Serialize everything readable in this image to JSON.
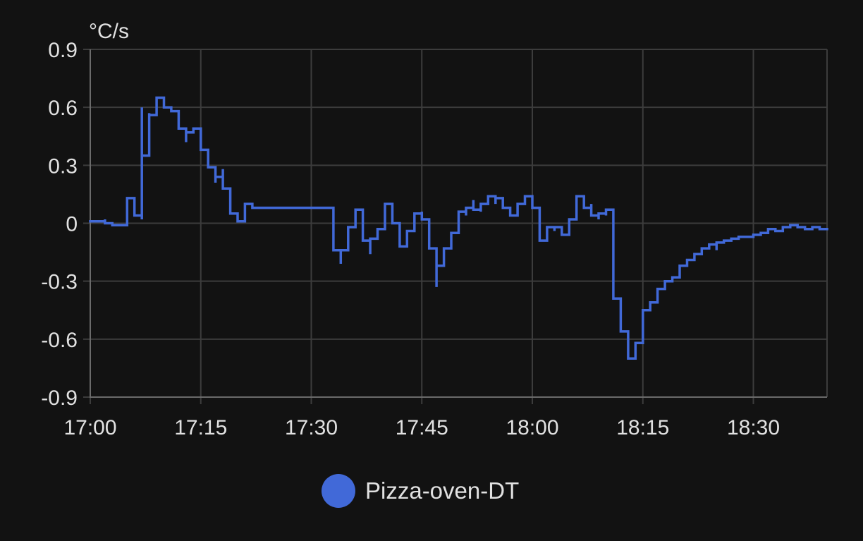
{
  "chart_data": {
    "type": "line",
    "ylabel": "°C/s",
    "ylim": [
      -0.9,
      0.9
    ],
    "y_ticks": [
      "0.9",
      "0.6",
      "0.3",
      "0",
      "-0.3",
      "-0.6",
      "-0.9"
    ],
    "y_tick_values": [
      0.9,
      0.6,
      0.3,
      0,
      -0.3,
      -0.6,
      -0.9
    ],
    "xlim": [
      "17:00",
      "18:40"
    ],
    "x_ticks": [
      "17:00",
      "17:15",
      "17:30",
      "17:45",
      "18:00",
      "18:15",
      "18:30"
    ],
    "grid": true,
    "step": true,
    "legend_position": "bottom",
    "colors": {
      "series": "#4169d8",
      "grid": "#3c3c3c",
      "axis": "#6a6a6a",
      "text": "#e1e1e1",
      "background": "#121212"
    },
    "series": [
      {
        "name": "Pizza-oven-DT",
        "points": [
          [
            "17:00",
            0.01
          ],
          [
            "17:02",
            0.01
          ],
          [
            "17:02",
            0.02
          ],
          [
            "17:02",
            0.0
          ],
          [
            "17:03",
            -0.01
          ],
          [
            "17:05",
            -0.01
          ],
          [
            "17:05",
            0.03
          ],
          [
            "17:05",
            0.13
          ],
          [
            "17:06",
            0.08
          ],
          [
            "17:06",
            0.04
          ],
          [
            "17:07",
            0.02
          ],
          [
            "17:07",
            0.02
          ],
          [
            "17:07",
            0.6
          ],
          [
            "17:07",
            0.35
          ],
          [
            "17:08",
            0.57
          ],
          [
            "17:08",
            0.37
          ],
          [
            "17:08",
            0.5
          ],
          [
            "17:08",
            0.56
          ],
          [
            "17:09",
            0.6
          ],
          [
            "17:09",
            0.65
          ],
          [
            "17:10",
            0.6
          ],
          [
            "17:11",
            0.58
          ],
          [
            "17:12",
            0.54
          ],
          [
            "17:12",
            0.49
          ],
          [
            "17:13",
            0.42
          ],
          [
            "17:13",
            0.47
          ],
          [
            "17:14",
            0.49
          ],
          [
            "17:15",
            0.45
          ],
          [
            "17:15",
            0.38
          ],
          [
            "17:16",
            0.34
          ],
          [
            "17:16",
            0.29
          ],
          [
            "17:17",
            0.21
          ],
          [
            "17:17",
            0.24
          ],
          [
            "17:18",
            0.28
          ],
          [
            "17:18",
            0.18
          ],
          [
            "17:19",
            0.09
          ],
          [
            "17:19",
            0.05
          ],
          [
            "17:20",
            0.03
          ],
          [
            "17:20",
            0.01
          ],
          [
            "17:21",
            0.04
          ],
          [
            "17:21",
            0.1
          ],
          [
            "17:22",
            0.08
          ],
          [
            "17:27",
            0.08
          ],
          [
            "17:33",
            0.08
          ],
          [
            "17:33",
            -0.14
          ],
          [
            "17:34",
            -0.21
          ],
          [
            "17:34",
            -0.14
          ],
          [
            "17:35",
            -0.13
          ],
          [
            "17:35",
            -0.02
          ],
          [
            "17:36",
            0.04
          ],
          [
            "17:36",
            0.07
          ],
          [
            "17:37",
            0.05
          ],
          [
            "17:37",
            -0.09
          ],
          [
            "17:38",
            -0.16
          ],
          [
            "17:38",
            -0.08
          ],
          [
            "17:39",
            -0.03
          ],
          [
            "17:40",
            0.02
          ],
          [
            "17:40",
            0.1
          ],
          [
            "17:41",
            0.07
          ],
          [
            "17:41",
            0.0
          ],
          [
            "17:42",
            -0.06
          ],
          [
            "17:42",
            -0.12
          ],
          [
            "17:43",
            -0.04
          ],
          [
            "17:44",
            0.02
          ],
          [
            "17:44",
            0.05
          ],
          [
            "17:45",
            0.06
          ],
          [
            "17:45",
            0.02
          ],
          [
            "17:46",
            -0.04
          ],
          [
            "17:46",
            -0.13
          ],
          [
            "17:47",
            -0.33
          ],
          [
            "17:47",
            -0.22
          ],
          [
            "17:48",
            -0.14
          ],
          [
            "17:48",
            -0.13
          ],
          [
            "17:49",
            -0.11
          ],
          [
            "17:49",
            -0.05
          ],
          [
            "17:50",
            0.0
          ],
          [
            "17:50",
            0.06
          ],
          [
            "17:51",
            0.04
          ],
          [
            "17:51",
            0.08
          ],
          [
            "17:52",
            0.12
          ],
          [
            "17:52",
            0.07
          ],
          [
            "17:53",
            0.06
          ],
          [
            "17:53",
            0.1
          ],
          [
            "17:54",
            0.14
          ],
          [
            "17:55",
            0.1
          ],
          [
            "17:55",
            0.13
          ],
          [
            "17:56",
            0.12
          ],
          [
            "17:56",
            0.08
          ],
          [
            "17:57",
            0.04
          ],
          [
            "17:58",
            0.08
          ],
          [
            "17:58",
            0.1
          ],
          [
            "17:59",
            0.11
          ],
          [
            "17:59",
            0.14
          ],
          [
            "18:00",
            0.14
          ],
          [
            "18:00",
            0.08
          ],
          [
            "18:01",
            -0.04
          ],
          [
            "18:01",
            -0.09
          ],
          [
            "18:02",
            -0.02
          ],
          [
            "18:03",
            -0.04
          ],
          [
            "18:03",
            -0.02
          ],
          [
            "18:04",
            -0.06
          ],
          [
            "18:05",
            -0.05
          ],
          [
            "18:05",
            0.02
          ],
          [
            "18:06",
            0.1
          ],
          [
            "18:06",
            0.14
          ],
          [
            "18:07",
            0.13
          ],
          [
            "18:07",
            0.08
          ],
          [
            "18:08",
            0.1
          ],
          [
            "18:08",
            0.04
          ],
          [
            "18:09",
            0.02
          ],
          [
            "18:09",
            0.05
          ],
          [
            "18:10",
            0.04
          ],
          [
            "18:10",
            0.07
          ],
          [
            "18:11",
            0.03
          ],
          [
            "18:11",
            -0.06
          ],
          [
            "18:11",
            -0.39
          ],
          [
            "18:12",
            -0.52
          ],
          [
            "18:12",
            -0.56
          ],
          [
            "18:13",
            -0.65
          ],
          [
            "18:13",
            -0.7
          ],
          [
            "18:14",
            -0.62
          ],
          [
            "18:15",
            -0.56
          ],
          [
            "18:15",
            -0.45
          ],
          [
            "18:16",
            -0.41
          ],
          [
            "18:17",
            -0.36
          ],
          [
            "18:17",
            -0.34
          ],
          [
            "18:18",
            -0.3
          ],
          [
            "18:19",
            -0.28
          ],
          [
            "18:20",
            -0.22
          ],
          [
            "18:21",
            -0.19
          ],
          [
            "18:22",
            -0.16
          ],
          [
            "18:23",
            -0.13
          ],
          [
            "18:24",
            -0.11
          ],
          [
            "18:25",
            -0.14
          ],
          [
            "18:25",
            -0.1
          ],
          [
            "18:26",
            -0.09
          ],
          [
            "18:27",
            -0.08
          ],
          [
            "18:28",
            -0.07
          ],
          [
            "18:30",
            -0.06
          ],
          [
            "18:31",
            -0.05
          ],
          [
            "18:32",
            -0.03
          ],
          [
            "18:33",
            -0.04
          ],
          [
            "18:34",
            -0.02
          ],
          [
            "18:35",
            -0.01
          ],
          [
            "18:36",
            -0.02
          ],
          [
            "18:37",
            -0.03
          ],
          [
            "18:38",
            -0.02
          ],
          [
            "18:39",
            -0.03
          ],
          [
            "18:40",
            -0.03
          ]
        ]
      }
    ]
  }
}
